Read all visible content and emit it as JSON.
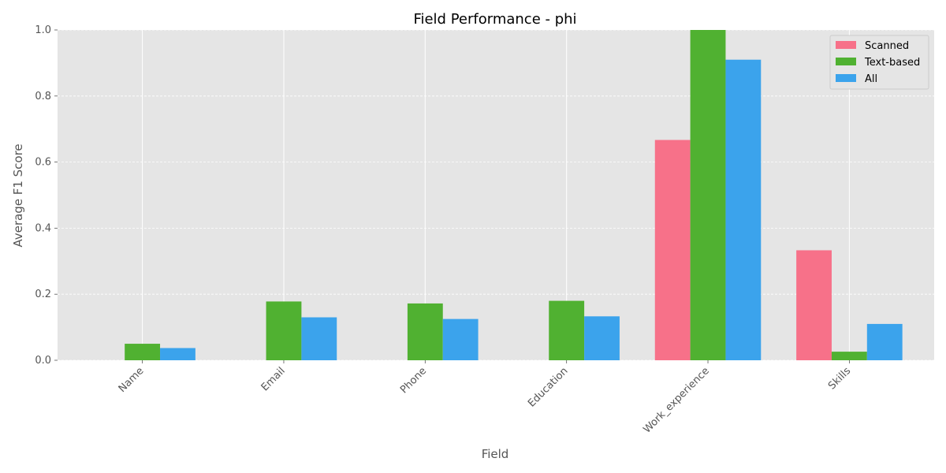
{
  "chart_data": {
    "type": "bar",
    "title": "Field Performance - phi",
    "xlabel": "Field",
    "ylabel": "Average F1 Score",
    "ylim": [
      0,
      1.0
    ],
    "yticks": [
      "0.0",
      "0.2",
      "0.4",
      "0.6",
      "0.8",
      "1.0"
    ],
    "categories": [
      "Name",
      "Email",
      "Phone",
      "Education",
      "Work_experience",
      "Skills"
    ],
    "series": [
      {
        "name": "Scanned",
        "color": "#f77189",
        "values": [
          0.0,
          0.0,
          0.0,
          0.0,
          0.667,
          0.333
        ]
      },
      {
        "name": "Text-based",
        "color": "#50b131",
        "values": [
          0.05,
          0.178,
          0.172,
          0.18,
          1.0,
          0.026
        ]
      },
      {
        "name": "All",
        "color": "#3ba3ec",
        "values": [
          0.037,
          0.13,
          0.125,
          0.133,
          0.91,
          0.11
        ]
      }
    ],
    "grid": true,
    "legend_position": "top-right"
  }
}
